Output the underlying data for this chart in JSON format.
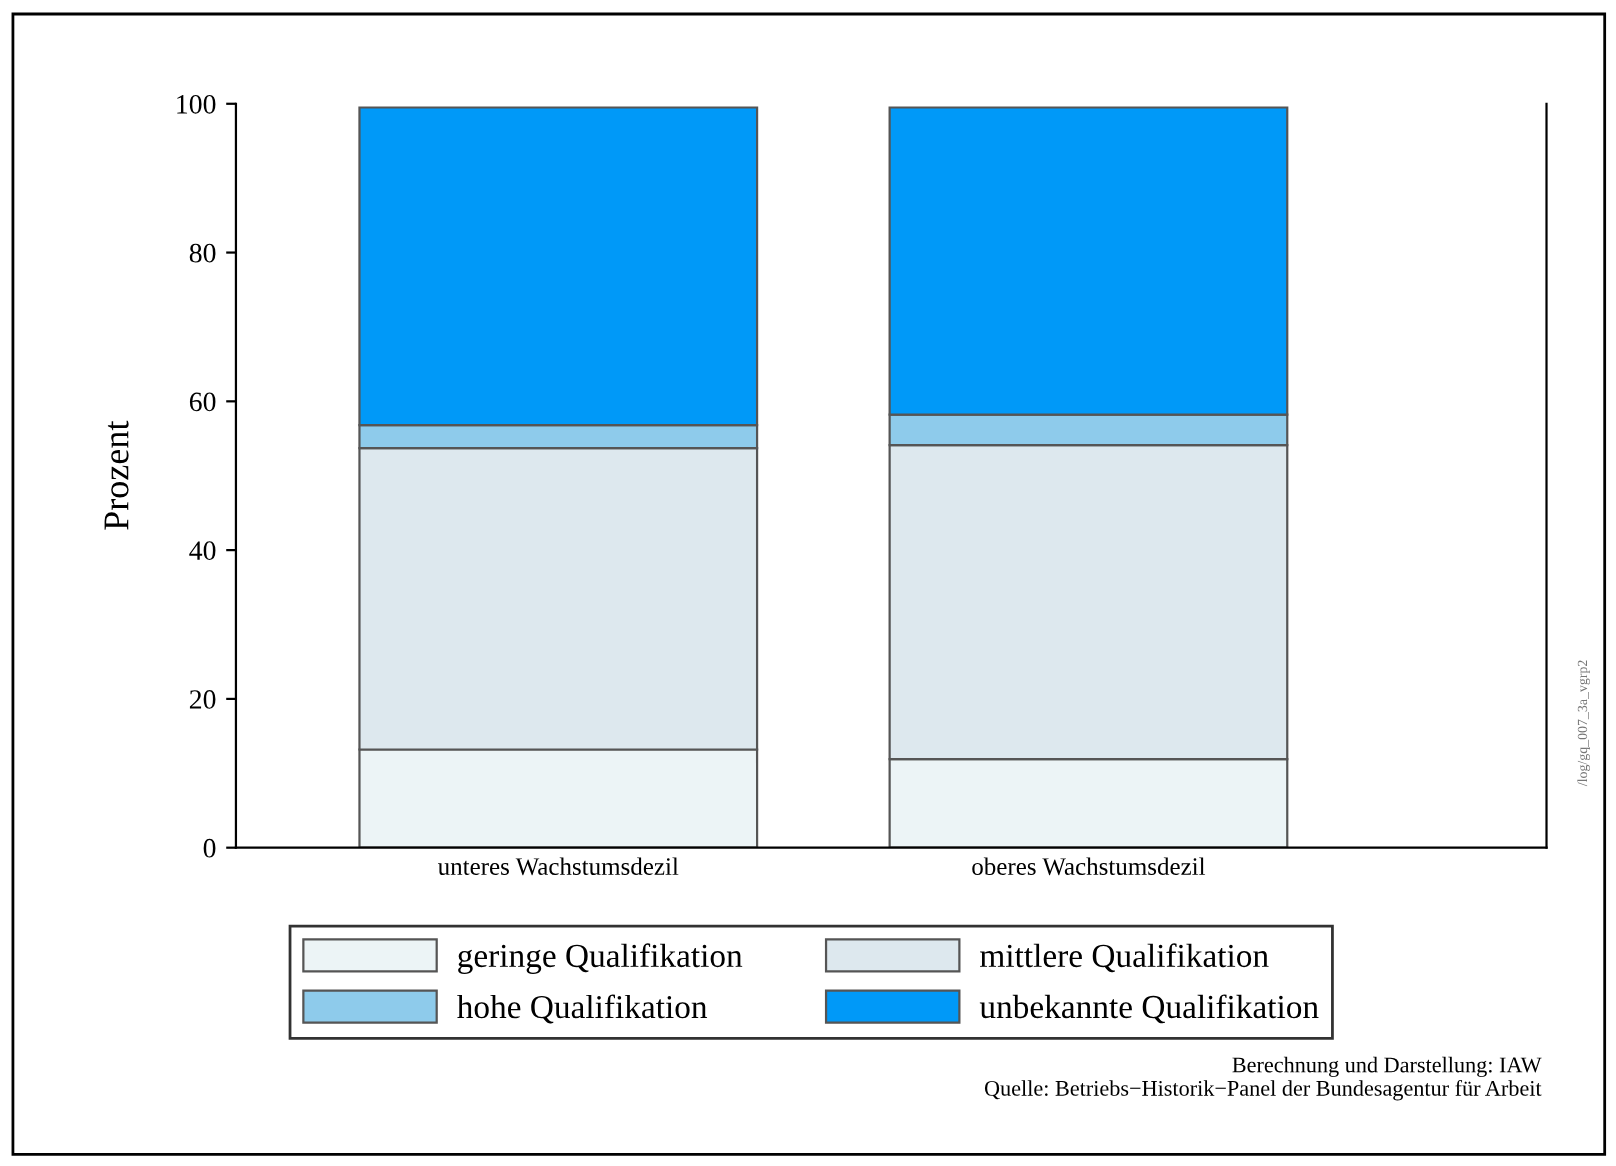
{
  "chart_data": {
    "type": "bar",
    "stacked": true,
    "ylabel": "Prozent",
    "categories": [
      "unteres Wachstumsdezil",
      "oberes Wachstumsdezil"
    ],
    "series": [
      {
        "name": "geringe Qualifikation",
        "color": "#ecf4f6",
        "values": [
          13.2,
          11.9
        ]
      },
      {
        "name": "mittlere Qualifikation",
        "color": "#dde8ee",
        "values": [
          40.5,
          42.2
        ]
      },
      {
        "name": "hohe Qualifikation",
        "color": "#8ecbeb",
        "values": [
          3.1,
          4.1
        ]
      },
      {
        "name": "unbekannte Qualifikation",
        "color": "#0099f8",
        "values": [
          42.7,
          41.3
        ]
      }
    ],
    "ylim": [
      0,
      100
    ],
    "yticks": [
      0,
      20,
      40,
      60,
      80,
      100
    ],
    "grid": false,
    "legend": "bottom",
    "annotations": [
      "Berechnung und Darstellung: IAW",
      "Quelle: Betriebs−Historik−Panel der Bundesagentur für Arbeit",
      "/log/gq_007_3a_vgrp2"
    ]
  }
}
